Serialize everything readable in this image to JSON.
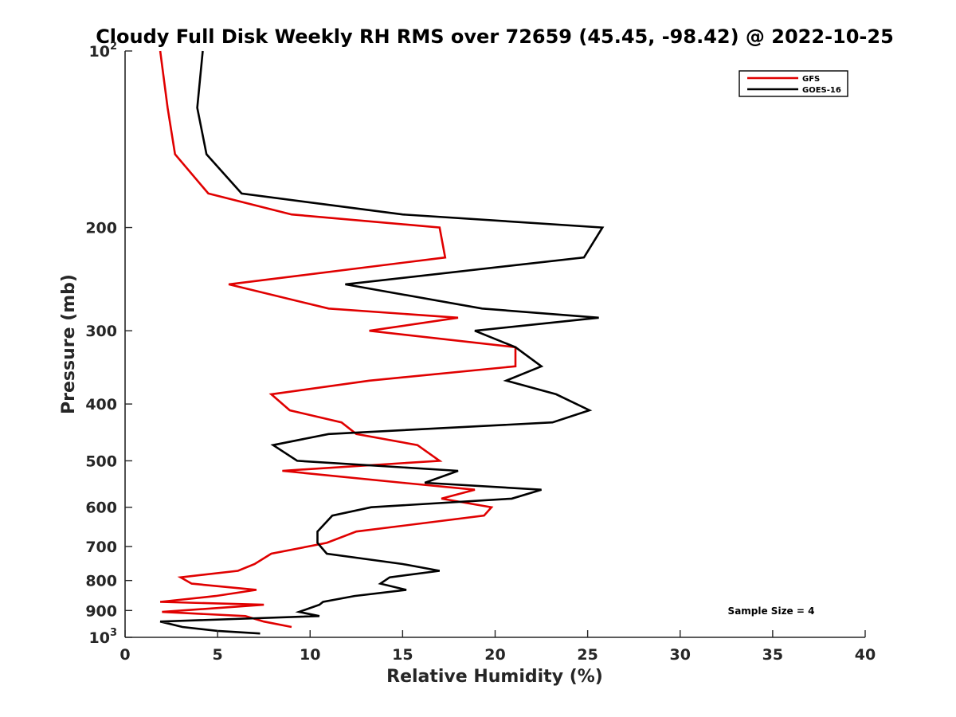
{
  "chart_data": {
    "type": "line",
    "title": "Cloudy Full Disk Weekly RH RMS over 72659 (45.45, -98.42) @ 2022-10-25",
    "xlabel": "Relative Humidity (%)",
    "ylabel": "Pressure (mb)",
    "xlim": [
      0,
      40
    ],
    "ylim": [
      100,
      1000
    ],
    "y_scale": "log",
    "y_reversed": true,
    "grid": false,
    "legend_position": "top-right",
    "x_ticks": [
      "0",
      "5",
      "10",
      "15",
      "20",
      "25",
      "30",
      "35",
      "40"
    ],
    "y_ticks": [
      {
        "value": 100,
        "label": "10",
        "sup": "2"
      },
      {
        "value": 200,
        "label": "200",
        "sup": ""
      },
      {
        "value": 300,
        "label": "300",
        "sup": ""
      },
      {
        "value": 400,
        "label": "400",
        "sup": ""
      },
      {
        "value": 500,
        "label": "500",
        "sup": ""
      },
      {
        "value": 600,
        "label": "600",
        "sup": ""
      },
      {
        "value": 700,
        "label": "700",
        "sup": ""
      },
      {
        "value": 800,
        "label": "800",
        "sup": ""
      },
      {
        "value": 900,
        "label": "900",
        "sup": ""
      },
      {
        "value": 1000,
        "label": "10",
        "sup": "3"
      }
    ],
    "annotation": "Sample Size = 4",
    "series": [
      {
        "name": "GFS",
        "color": "#e00000",
        "points": [
          [
            1.9,
            100
          ],
          [
            2.3,
            125
          ],
          [
            2.7,
            150
          ],
          [
            4.5,
            175
          ],
          [
            9.0,
            190
          ],
          [
            17.0,
            200
          ],
          [
            17.3,
            225
          ],
          [
            5.6,
            250
          ],
          [
            11.0,
            275
          ],
          [
            18.0,
            285
          ],
          [
            13.2,
            300
          ],
          [
            21.1,
            320
          ],
          [
            21.1,
            345
          ],
          [
            13.2,
            365
          ],
          [
            7.9,
            385
          ],
          [
            8.9,
            410
          ],
          [
            11.7,
            430
          ],
          [
            12.5,
            450
          ],
          [
            15.8,
            470
          ],
          [
            17.0,
            500
          ],
          [
            8.5,
            520
          ],
          [
            15.0,
            545
          ],
          [
            18.9,
            560
          ],
          [
            17.1,
            580
          ],
          [
            19.8,
            600
          ],
          [
            19.4,
            620
          ],
          [
            12.5,
            660
          ],
          [
            10.9,
            690
          ],
          [
            7.9,
            720
          ],
          [
            7.0,
            750
          ],
          [
            6.1,
            770
          ],
          [
            3.0,
            790
          ],
          [
            3.6,
            810
          ],
          [
            7.1,
            830
          ],
          [
            4.9,
            850
          ],
          [
            1.9,
            870
          ],
          [
            7.5,
            880
          ],
          [
            2.0,
            905
          ],
          [
            6.5,
            920
          ],
          [
            7.5,
            940
          ],
          [
            9.0,
            960
          ]
        ]
      },
      {
        "name": "GOES-16",
        "color": "#000000",
        "points": [
          [
            4.2,
            100
          ],
          [
            3.9,
            125
          ],
          [
            4.4,
            150
          ],
          [
            6.3,
            175
          ],
          [
            15.0,
            190
          ],
          [
            25.8,
            200
          ],
          [
            24.8,
            225
          ],
          [
            11.9,
            250
          ],
          [
            19.3,
            275
          ],
          [
            25.6,
            285
          ],
          [
            18.9,
            300
          ],
          [
            21.1,
            320
          ],
          [
            22.5,
            345
          ],
          [
            20.6,
            365
          ],
          [
            23.3,
            385
          ],
          [
            25.1,
            410
          ],
          [
            23.1,
            430
          ],
          [
            11.0,
            450
          ],
          [
            8.0,
            470
          ],
          [
            9.3,
            500
          ],
          [
            18.0,
            520
          ],
          [
            16.2,
            545
          ],
          [
            22.5,
            560
          ],
          [
            20.9,
            580
          ],
          [
            13.3,
            600
          ],
          [
            11.2,
            620
          ],
          [
            10.4,
            660
          ],
          [
            10.4,
            690
          ],
          [
            10.9,
            720
          ],
          [
            15.0,
            750
          ],
          [
            17.0,
            770
          ],
          [
            14.3,
            790
          ],
          [
            13.8,
            810
          ],
          [
            15.2,
            830
          ],
          [
            12.4,
            850
          ],
          [
            10.7,
            870
          ],
          [
            10.5,
            880
          ],
          [
            9.4,
            905
          ],
          [
            10.5,
            920
          ],
          [
            1.9,
            940
          ],
          [
            3.1,
            960
          ],
          [
            5.0,
            975
          ],
          [
            7.3,
            985
          ]
        ]
      }
    ]
  }
}
